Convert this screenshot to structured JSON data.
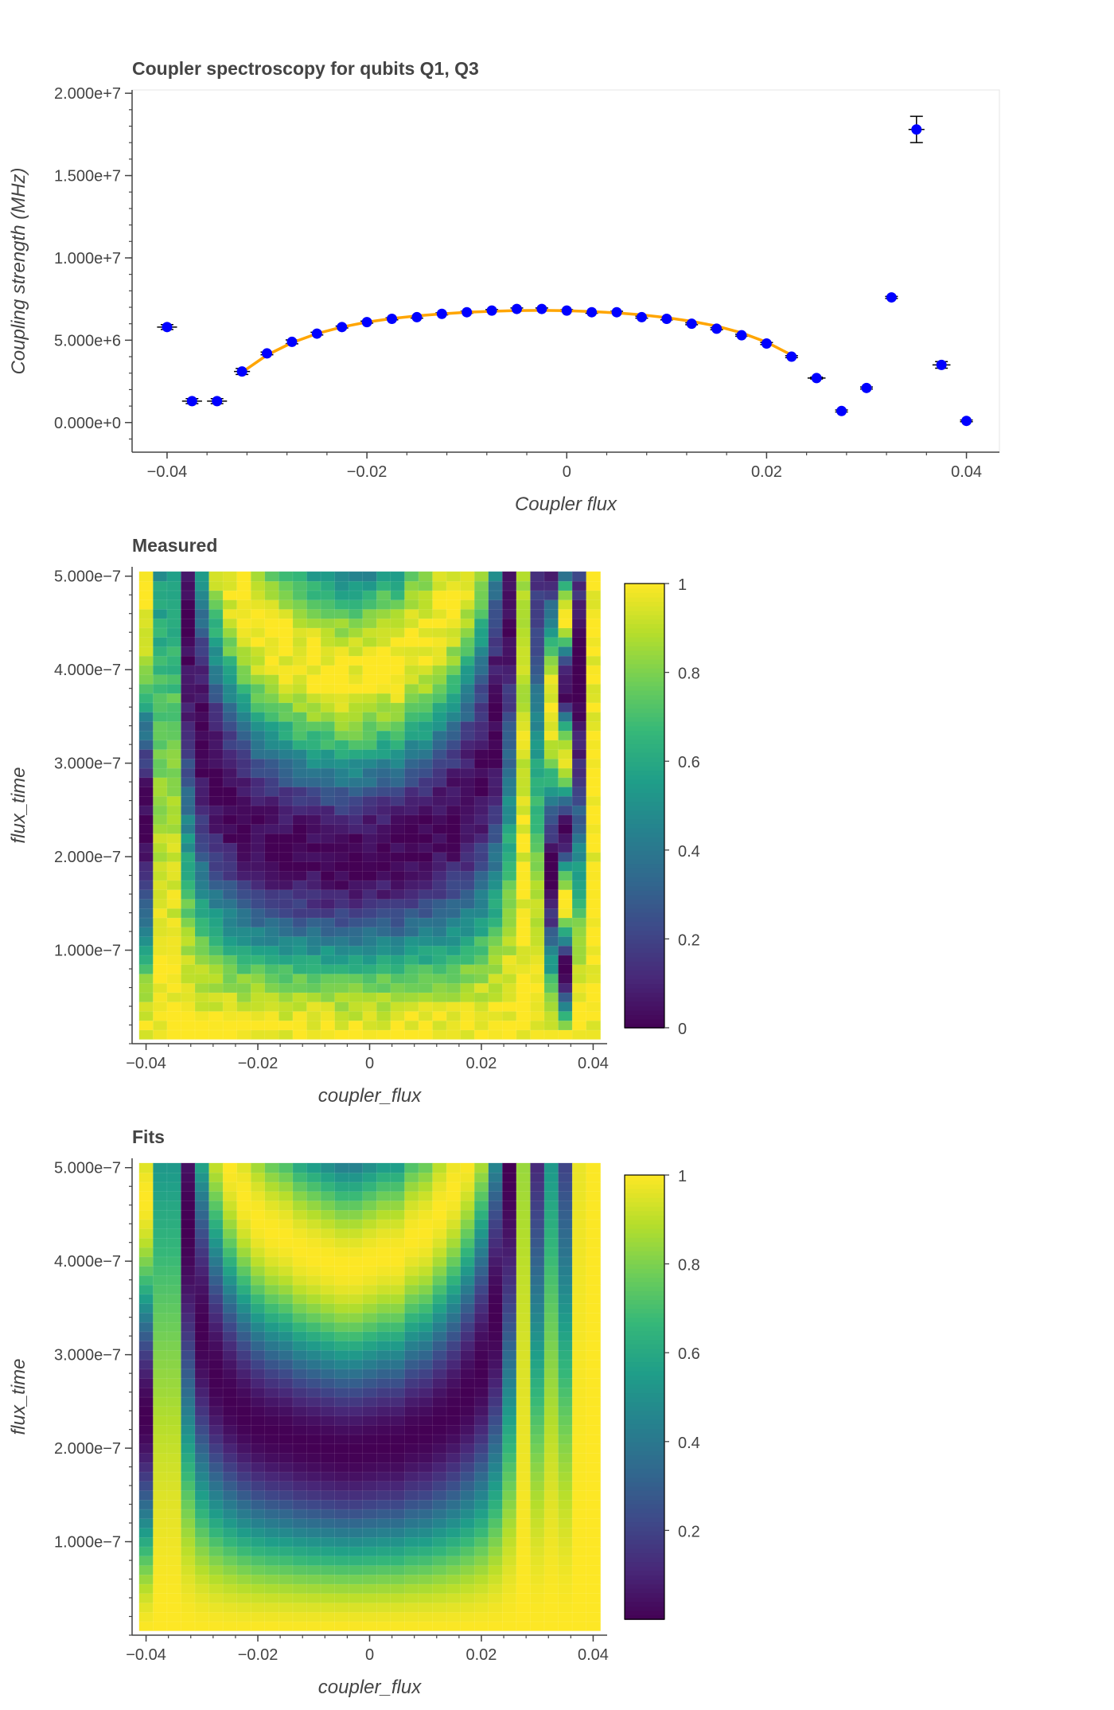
{
  "colors": {
    "points": "#0000ff",
    "fit_line": "#ffa500",
    "errorbar": "#000000",
    "axis": "#444444",
    "title": "#444444",
    "plot_outline": "#e5e5e5",
    "viridis": [
      "#440154",
      "#482878",
      "#3e4989",
      "#31688e",
      "#26828e",
      "#1f9e89",
      "#35b779",
      "#6ece58",
      "#b5de2b",
      "#fde725"
    ]
  },
  "chart_data": [
    {
      "type": "scatter",
      "title": "Coupler spectroscopy for qubits Q1, Q3",
      "xlabel": "Coupler flux",
      "ylabel": "Coupling strength (MHz)",
      "xlim": [
        -0.0435,
        0.0433
      ],
      "ylim": [
        -1800000,
        20200000
      ],
      "x_ticks": [
        -0.04,
        -0.02,
        0,
        0.02,
        0.04
      ],
      "x_tick_labels": [
        "−0.04",
        "−0.02",
        "0",
        "0.02",
        "0.04"
      ],
      "y_ticks": [
        0,
        5000000,
        10000000,
        15000000,
        20000000
      ],
      "y_tick_labels": [
        "0.000e+0",
        "5.000e+6",
        "1.000e+7",
        "1.500e+7",
        "2.000e+7"
      ],
      "series": [
        {
          "name": "measured",
          "x": [
            -0.04,
            -0.0375,
            -0.035,
            -0.0325,
            -0.03,
            -0.0275,
            -0.025,
            -0.0225,
            -0.02,
            -0.0175,
            -0.015,
            -0.0125,
            -0.01,
            -0.0075,
            -0.005,
            -0.0025,
            0,
            0.0025,
            0.005,
            0.0075,
            0.01,
            0.0125,
            0.015,
            0.0175,
            0.02,
            0.0225,
            0.025,
            0.0275,
            0.03,
            0.0325,
            0.035,
            0.0375,
            0.04
          ],
          "y": [
            5800000,
            1300000,
            1300000,
            3100000,
            4200000,
            4900000,
            5400000,
            5800000,
            6100000,
            6300000,
            6400000,
            6600000,
            6700000,
            6800000,
            6900000,
            6900000,
            6800000,
            6700000,
            6700000,
            6400000,
            6300000,
            6000000,
            5700000,
            5300000,
            4800000,
            4000000,
            2700000,
            700000,
            2100000,
            7600000,
            17800000,
            3500000,
            100000
          ],
          "yerr": [
            150000,
            150000,
            150000,
            180000,
            80000,
            120000,
            80000,
            60000,
            60000,
            60000,
            60000,
            60000,
            60000,
            60000,
            60000,
            60000,
            60000,
            60000,
            60000,
            60000,
            60000,
            60000,
            60000,
            60000,
            60000,
            60000,
            60000,
            60000,
            60000,
            60000,
            800000,
            200000,
            50000
          ],
          "xerr": [
            0.001,
            0.001,
            0.001,
            0.0008,
            0.0003,
            0.0005,
            0.0003,
            0.0002,
            0.0002,
            0.0002,
            0.0002,
            0.0002,
            0.0002,
            0.0002,
            0.0002,
            0.0002,
            0.0002,
            0.0002,
            0.0002,
            0.0002,
            0.0002,
            0.0002,
            0.0002,
            0.0002,
            0.0002,
            0.0002,
            0.0009,
            0.0002,
            0.0002,
            0.0002,
            0.0008,
            0.0009,
            0.0002
          ]
        },
        {
          "name": "fit",
          "x": [
            -0.0325,
            -0.03,
            -0.0275,
            -0.025,
            -0.0225,
            -0.02,
            -0.0175,
            -0.015,
            -0.0125,
            -0.01,
            -0.0075,
            -0.005,
            -0.0025,
            0,
            0.0025,
            0.005,
            0.0075,
            0.01,
            0.0125,
            0.015,
            0.0175,
            0.02,
            0.0225
          ],
          "y": [
            3050000,
            4100000,
            4850000,
            5400000,
            5800000,
            6100000,
            6320000,
            6480000,
            6600000,
            6700000,
            6760000,
            6800000,
            6810000,
            6790000,
            6740000,
            6660000,
            6540000,
            6370000,
            6150000,
            5860000,
            5450000,
            4880000,
            4100000
          ]
        }
      ]
    },
    {
      "type": "heatmap",
      "title": "Measured",
      "xlabel": "coupler_flux",
      "ylabel": "flux_time",
      "xlim": [
        -0.0425,
        0.0425
      ],
      "ylim": [
        0,
        510
      ],
      "x_ticks": [
        -0.04,
        -0.02,
        0,
        0.02,
        0.04
      ],
      "x_tick_labels": [
        "−0.04",
        "−0.02",
        "0",
        "0.02",
        "0.04"
      ],
      "y_ticks": [
        100,
        200,
        300,
        400,
        500
      ],
      "y_tick_labels": [
        "1.000e−7",
        "2.000e−7",
        "3.000e−7",
        "4.000e−7",
        "5.000e−7"
      ],
      "colorbar_range": [
        0,
        1
      ],
      "colorbar_ticks": [
        0,
        0.2,
        0.4,
        0.6,
        0.8,
        1
      ],
      "colorbar_tick_labels": [
        "0",
        "0.2",
        "0.4",
        "0.6",
        "0.8",
        "1"
      ],
      "grid": {
        "x_start": -0.04,
        "x_step": 0.0025,
        "nx": 33,
        "y_start": 10,
        "y_step": 10,
        "ny": 50,
        "max_coupling": 6800000,
        "coupling_by_column": [
          5800000,
          1300000,
          1300000,
          3100000,
          4200000,
          4900000,
          5400000,
          5800000,
          6100000,
          6300000,
          6400000,
          6600000,
          6700000,
          6800000,
          6900000,
          6900000,
          6800000,
          6700000,
          6700000,
          6400000,
          6300000,
          6000000,
          5700000,
          5300000,
          4800000,
          4000000,
          2700000,
          700000,
          2100000,
          7600000,
          17800000,
          3500000,
          100000
        ],
        "noise": 0.06
      }
    },
    {
      "type": "heatmap",
      "title": "Fits",
      "xlabel": "coupler_flux",
      "ylabel": "flux_time",
      "xlim": [
        -0.0425,
        0.0425
      ],
      "ylim": [
        0,
        510
      ],
      "x_ticks": [
        -0.04,
        -0.02,
        0,
        0.02,
        0.04
      ],
      "x_tick_labels": [
        "−0.04",
        "−0.02",
        "0",
        "0.02",
        "0.04"
      ],
      "y_ticks": [
        100,
        200,
        300,
        400,
        500
      ],
      "y_tick_labels": [
        "1.000e−7",
        "2.000e−7",
        "3.000e−7",
        "4.000e−7",
        "5.000e−7"
      ],
      "colorbar_range": [
        0,
        1
      ],
      "colorbar_ticks": [
        0.2,
        0.4,
        0.6,
        0.8,
        1
      ],
      "colorbar_tick_labels": [
        "0.2",
        "0.4",
        "0.6",
        "0.8",
        "1"
      ],
      "grid": {
        "x_start": -0.04,
        "x_step": 0.0025,
        "nx": 33,
        "y_start": 10,
        "y_step": 10,
        "ny": 50,
        "max_coupling": 6800000,
        "coupling_by_column": [
          5800000,
          1300000,
          1300000,
          3100000,
          4200000,
          4900000,
          5400000,
          5800000,
          6100000,
          6300000,
          6400000,
          6600000,
          6700000,
          6800000,
          6900000,
          6900000,
          6800000,
          6700000,
          6700000,
          6400000,
          6300000,
          6000000,
          5700000,
          5300000,
          4800000,
          4000000,
          2700000,
          700000,
          2100000,
          1300000,
          1900000,
          300000,
          100000
        ],
        "noise": 0
      }
    }
  ]
}
